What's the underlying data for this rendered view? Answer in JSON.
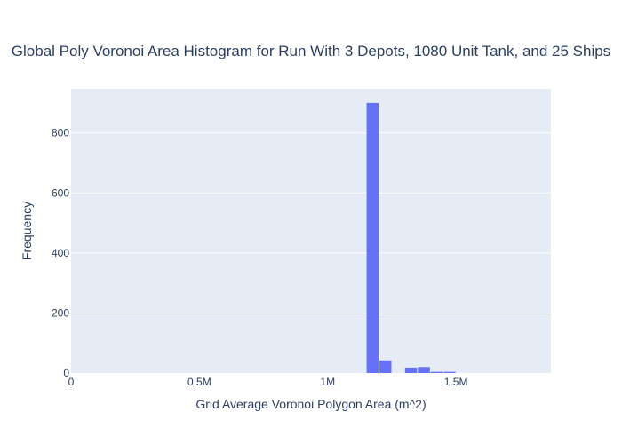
{
  "chart_data": {
    "type": "bar",
    "title": "Global Poly Voronoi Area Histogram for Run With 3 Depots, 1080 Unit Tank, and 25 Ships",
    "xlabel": "Grid Average Voronoi Polygon Area (m^2)",
    "ylabel": "Frequency",
    "xlim": [
      0,
      1870000
    ],
    "ylim": [
      0,
      947
    ],
    "x_ticks": [
      {
        "value": 0,
        "label": "0"
      },
      {
        "value": 500000,
        "label": "0.5M"
      },
      {
        "value": 1000000,
        "label": "1M"
      },
      {
        "value": 1500000,
        "label": "1.5M"
      }
    ],
    "y_ticks": [
      {
        "value": 0,
        "label": "0"
      },
      {
        "value": 200,
        "label": "200"
      },
      {
        "value": 400,
        "label": "400"
      },
      {
        "value": 600,
        "label": "600"
      },
      {
        "value": 800,
        "label": "800"
      }
    ],
    "bins": [
      {
        "x0": 1150000,
        "x1": 1200000,
        "count": 900
      },
      {
        "x0": 1200000,
        "x1": 1250000,
        "count": 42
      },
      {
        "x0": 1300000,
        "x1": 1350000,
        "count": 18
      },
      {
        "x0": 1350000,
        "x1": 1400000,
        "count": 20
      },
      {
        "x0": 1400000,
        "x1": 1450000,
        "count": 4
      },
      {
        "x0": 1450000,
        "x1": 1500000,
        "count": 4
      }
    ],
    "grid": true,
    "colors": {
      "bar": "#636efa",
      "plot_bg": "#e5ecf6",
      "grid": "#ffffff",
      "text": "#2a3f5f"
    }
  }
}
